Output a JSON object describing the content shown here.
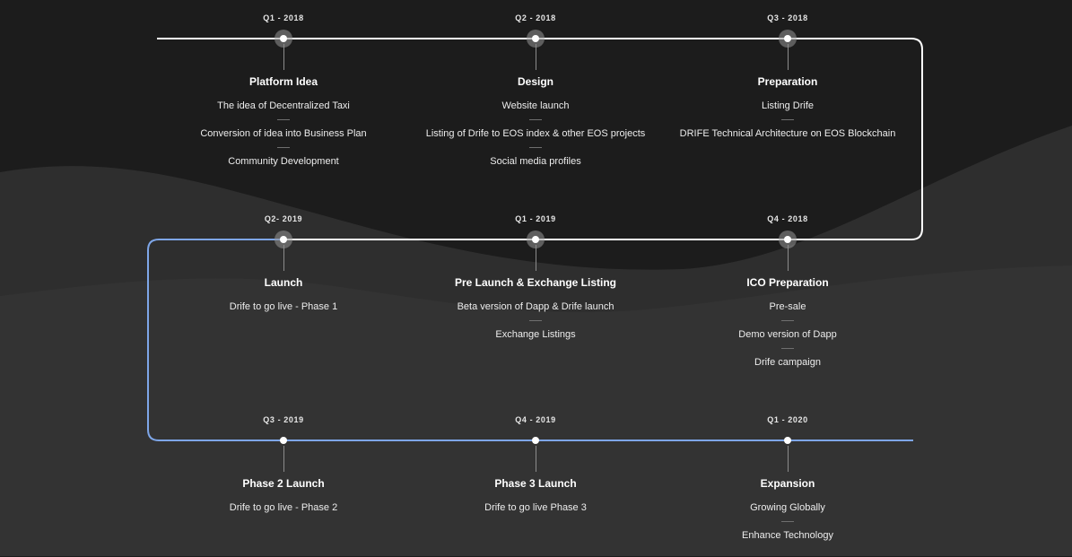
{
  "colors": {
    "background_dark": "#1c1c1c",
    "background_wave": "#2e2e2e",
    "track_white": "#ffffff",
    "track_blue": "#7ea6e8"
  },
  "rows": [
    {
      "track_color": "white",
      "milestones": [
        {
          "date": "Q1 - 2018",
          "title": "Platform Idea",
          "items": [
            "The idea of Decentralized Taxi",
            "Conversion of idea into Business Plan",
            "Community Development"
          ],
          "marker": "ring"
        },
        {
          "date": "Q2 - 2018",
          "title": "Design",
          "items": [
            "Website launch",
            "Listing of Drife to EOS index & other EOS projects",
            "Social media profiles"
          ],
          "marker": "ring"
        },
        {
          "date": "Q3 - 2018",
          "title": "Preparation",
          "items": [
            "Listing Drife",
            "DRIFE Technical Architecture on EOS Blockchain"
          ],
          "marker": "ring"
        }
      ]
    },
    {
      "track_color": "white",
      "milestones": [
        {
          "date": "Q2- 2019",
          "title": "Launch",
          "items": [
            "Drife to go live - Phase 1"
          ],
          "marker": "ring"
        },
        {
          "date": "Q1 - 2019",
          "title": "Pre Launch & Exchange Listing",
          "items": [
            "Beta version of Dapp & Drife launch",
            "Exchange Listings"
          ],
          "marker": "ring"
        },
        {
          "date": "Q4 - 2018",
          "title": "ICO Preparation",
          "items": [
            "Pre-sale",
            "Demo version of Dapp",
            "Drife campaign"
          ],
          "marker": "ring"
        }
      ]
    },
    {
      "track_color": "blue",
      "milestones": [
        {
          "date": "Q3 - 2019",
          "title": "Phase 2 Launch",
          "items": [
            "Drife to go live - Phase 2"
          ],
          "marker": "dot"
        },
        {
          "date": "Q4 - 2019",
          "title": "Phase 3 Launch",
          "items": [
            "Drife to go live Phase 3"
          ],
          "marker": "dot"
        },
        {
          "date": "Q1 - 2020",
          "title": "Expansion",
          "items": [
            "Growing Globally",
            "Enhance Technology"
          ],
          "marker": "dot"
        }
      ]
    }
  ]
}
